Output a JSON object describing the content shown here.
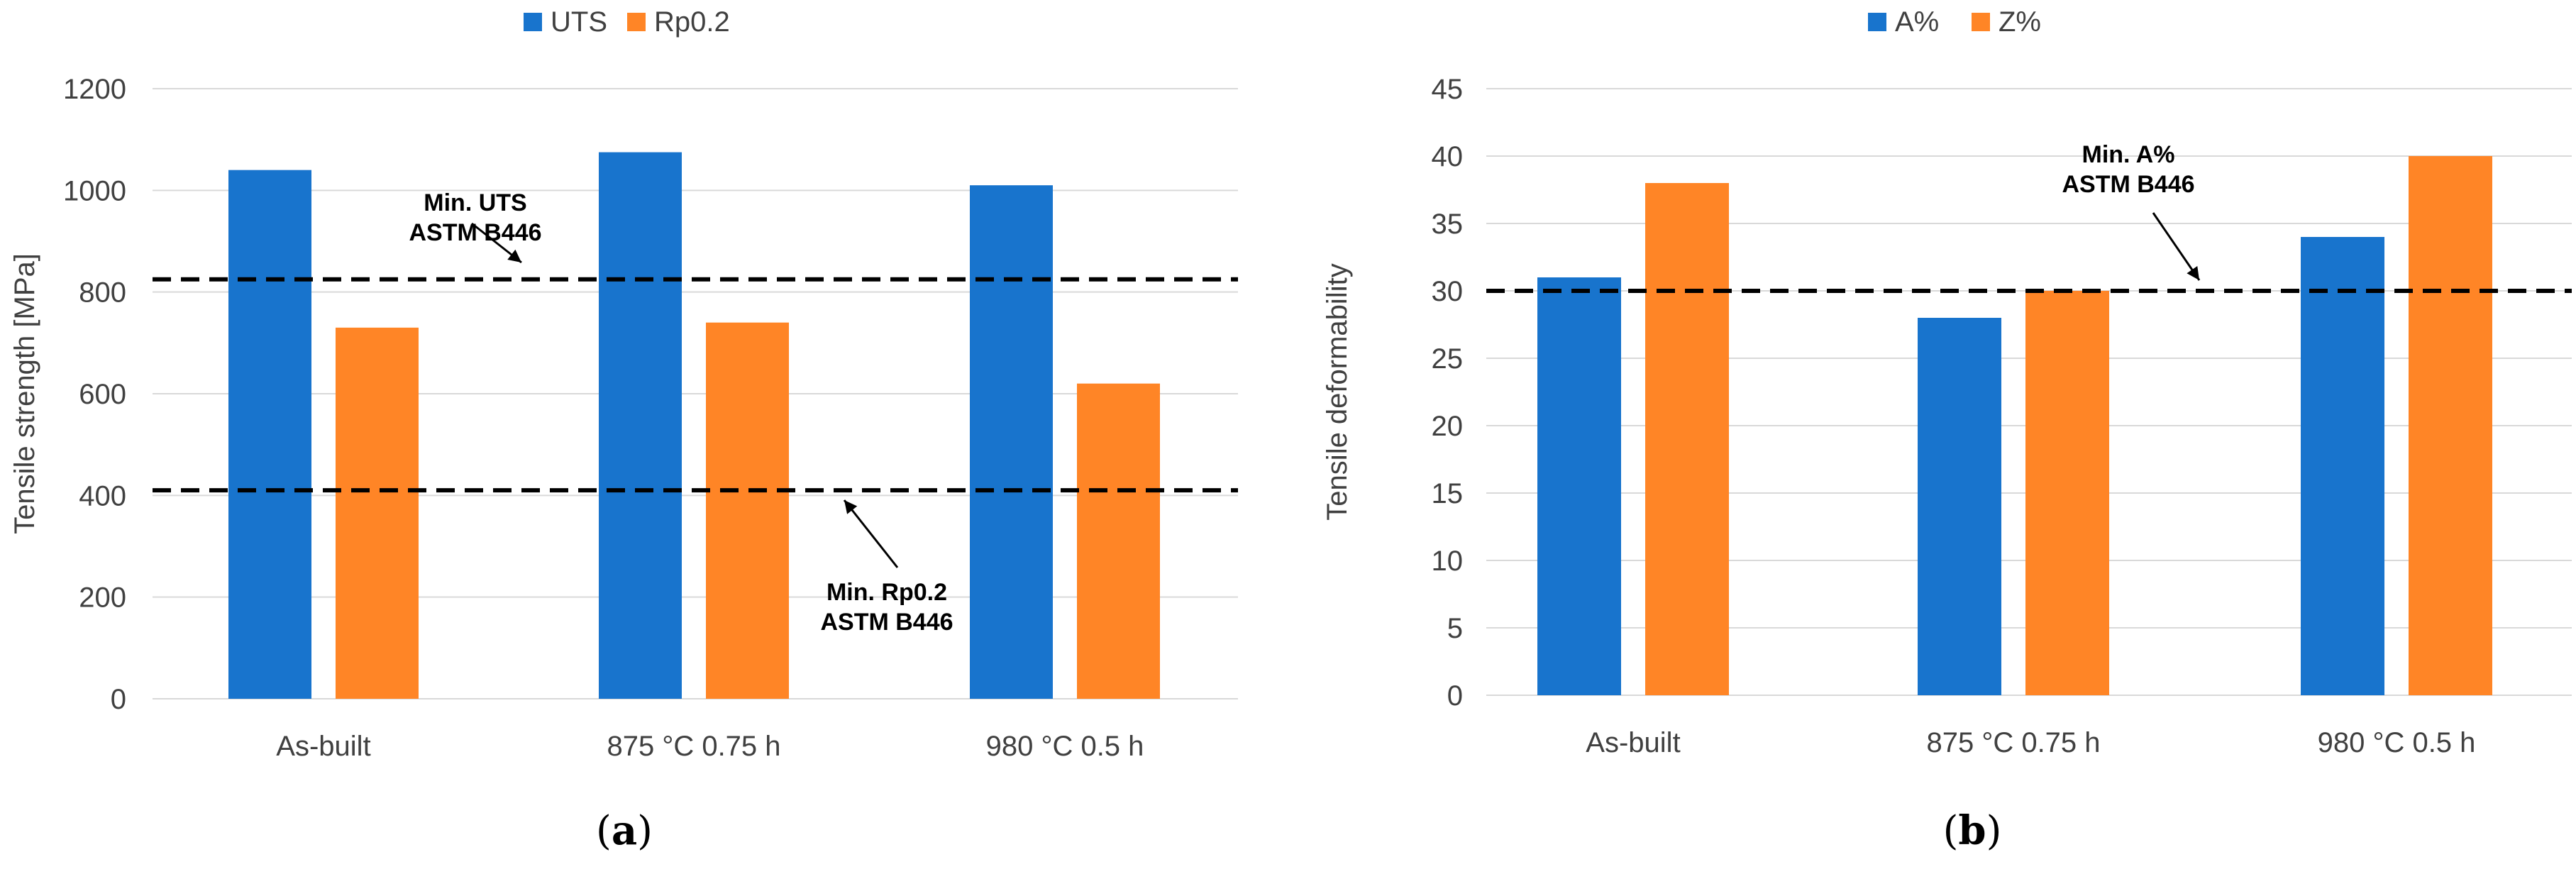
{
  "colors": {
    "blue": "#1874CD",
    "orange": "#FF8526"
  },
  "chart_data": [
    {
      "type": "bar",
      "panel": "(a)",
      "panel_letter": "a",
      "title": "",
      "ylabel": "Tensile strength [MPa]",
      "xlabel": "",
      "ylim": [
        0,
        1200
      ],
      "yticks": [
        0,
        200,
        400,
        600,
        800,
        1000,
        1200
      ],
      "categories": [
        "As-built",
        "875 °C 0.75 h",
        "980 °C 0.5 h"
      ],
      "series": [
        {
          "name": "UTS",
          "values": [
            1040,
            1075,
            1010
          ],
          "color": "#1874CD"
        },
        {
          "name": "Rp0.2",
          "values": [
            730,
            740,
            620
          ],
          "color": "#FF8526"
        }
      ],
      "reference_lines": [
        {
          "value": 825,
          "label_lines": [
            "Min. UTS",
            "ASTM B446"
          ]
        },
        {
          "value": 410,
          "label_lines": [
            "Min. Rp0.2",
            "ASTM B446"
          ]
        }
      ],
      "legend": "top-center",
      "grid": true
    },
    {
      "type": "bar",
      "panel": "(b)",
      "panel_letter": "b",
      "title": "",
      "ylabel": "Tensile deformability",
      "xlabel": "",
      "ylim": [
        0,
        45
      ],
      "yticks": [
        0,
        5,
        10,
        15,
        20,
        25,
        30,
        35,
        40,
        45
      ],
      "categories": [
        "As-built",
        "875 °C 0.75 h",
        "980 °C 0.5 h"
      ],
      "series": [
        {
          "name": "A%",
          "values": [
            31,
            28,
            34
          ],
          "color": "#1874CD"
        },
        {
          "name": "Z%",
          "values": [
            38,
            30,
            40
          ],
          "color": "#FF8526"
        }
      ],
      "reference_lines": [
        {
          "value": 30,
          "label_lines": [
            "Min. A%",
            "ASTM B446"
          ]
        }
      ],
      "legend": "top-center",
      "grid": true
    }
  ]
}
